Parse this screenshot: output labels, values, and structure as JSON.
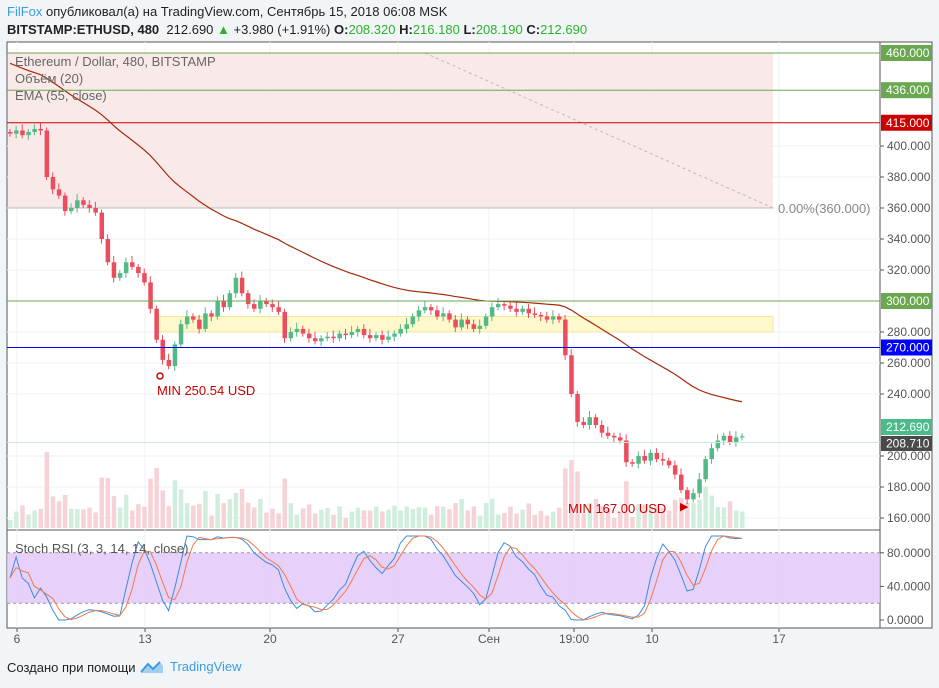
{
  "header": {
    "author": "FilFox",
    "published": "опубликовал(а) на TradingView.com, Сентябрь 15, 2018 06:08 MSK",
    "symbol": "BITSTAMP:ETHUSD, 480",
    "price": "212.690",
    "change": "+3.980 (+1.91%)",
    "o_label": "O:",
    "o": "208.320",
    "h_label": "H:",
    "h": "216.180",
    "l_label": "L:",
    "l": "208.190",
    "c_label": "C:",
    "c": "212.690"
  },
  "legend": {
    "title": "Ethereum / Dollar, 480, BITSTAMP",
    "volume": "Объём (20)",
    "ema": "EMA (55, close)",
    "stoch": "Stoch RSI (3, 3, 14, 14, close)"
  },
  "colors": {
    "up": "#53b987",
    "down": "#eb4d5c",
    "ema": "#a52a0a",
    "stochK": "#3a8dde",
    "stochD": "#f07a4a",
    "band": "#e1c6fa"
  },
  "annotations": {
    "min1": "MIN 250.54 USD",
    "min2": "MIN 167.00 USD",
    "fib": "0.00%(360.000)"
  },
  "price_axis": [
    "400.000",
    "380.000",
    "360.000",
    "340.000",
    "320.000",
    "280.000",
    "260.000",
    "240.000",
    "200.000",
    "180.000",
    "160.000"
  ],
  "price_ticks": [
    400,
    380,
    360,
    340,
    320,
    280,
    260,
    240,
    200,
    180,
    160
  ],
  "levels": [
    {
      "v": 460,
      "label": "460.000",
      "color": "#6aa84f"
    },
    {
      "v": 436,
      "label": "436.000",
      "color": "#6aa84f"
    },
    {
      "v": 415,
      "label": "415.000",
      "color": "#cc0000"
    },
    {
      "v": 300,
      "label": "300.000",
      "color": "#6aa84f"
    },
    {
      "v": 270,
      "label": "270.000",
      "color": "#0000ff"
    }
  ],
  "last_price": {
    "label": "212.690",
    "color": "#4cbb8a"
  },
  "prev_close": {
    "v": 208.71,
    "label": "208.710",
    "color": "#4a4a4a"
  },
  "stoch_axis": [
    "80.0000",
    "40.0000",
    "0.0000"
  ],
  "time_axis": [
    "6",
    "13",
    "20",
    "27",
    "Сен",
    "19:00",
    "10",
    "17"
  ],
  "footer": {
    "created": "Создано при помощи",
    "brand": "TradingView"
  },
  "chart_data": {
    "type": "candlestick",
    "ylim": [
      150,
      465
    ],
    "closes": [
      408,
      410,
      407,
      409,
      411,
      410,
      380,
      372,
      368,
      358,
      360,
      365,
      362,
      360,
      357,
      340,
      325,
      315,
      318,
      325,
      322,
      318,
      312,
      295,
      275,
      262,
      258,
      272,
      285,
      290,
      288,
      282,
      292,
      290,
      300,
      296,
      305,
      315,
      305,
      298,
      295,
      300,
      298,
      296,
      293,
      276,
      280,
      282,
      279,
      276,
      274,
      276,
      277,
      276,
      279,
      278,
      280,
      282,
      278,
      276,
      278,
      275,
      277,
      279,
      282,
      285,
      290,
      294,
      296,
      294,
      290,
      292,
      288,
      283,
      288,
      285,
      282,
      284,
      290,
      296,
      298,
      297,
      295,
      293,
      295,
      292,
      291,
      290,
      288,
      290,
      288,
      265,
      240,
      222,
      220,
      225,
      220,
      215,
      213,
      212,
      210,
      196,
      195,
      200,
      197,
      202,
      198,
      197,
      194,
      188,
      178,
      172,
      176,
      185,
      198,
      205,
      210,
      213,
      209,
      212,
      212.69
    ]
  }
}
